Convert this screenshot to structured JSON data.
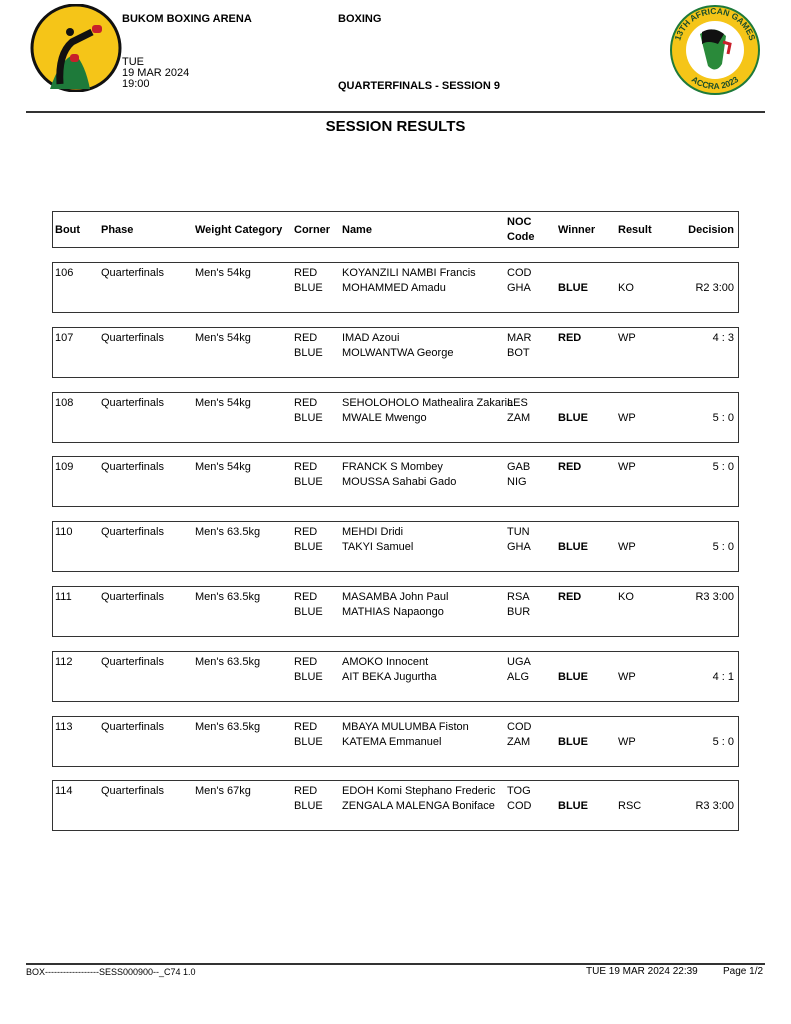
{
  "header": {
    "venue": "BUKOM BOXING ARENA",
    "sport": "BOXING",
    "day": "TUE",
    "date": "19 MAR 2024",
    "time": "19:00",
    "session": "QUARTERFINALS - SESSION 9",
    "games_logo_text": [
      "13TH AFRICAN GAMES",
      "ACCRA 2023"
    ]
  },
  "title": "SESSION RESULTS",
  "columns": {
    "bout": "Bout",
    "phase": "Phase",
    "weight": "Weight Category",
    "corner": "Corner",
    "name": "Name",
    "noc1": "NOC",
    "noc2": "Code",
    "winner": "Winner",
    "result": "Result",
    "decision": "Decision"
  },
  "bouts": [
    {
      "bout": "106",
      "phase": "Quarterfinals",
      "weight": "Men's 54kg",
      "red": "RED",
      "blue": "BLUE",
      "red_name": "KOYANZILI NAMBI Francis",
      "blue_name": "MOHAMMED Amadu",
      "red_noc": "COD",
      "blue_noc": "GHA",
      "winner": "BLUE",
      "result": "KO",
      "decision": "R2 3:00"
    },
    {
      "bout": "107",
      "phase": "Quarterfinals",
      "weight": "Men's 54kg",
      "red": "RED",
      "blue": "BLUE",
      "red_name": "IMAD Azoui",
      "blue_name": "MOLWANTWA George",
      "red_noc": "MAR",
      "blue_noc": "BOT",
      "winner": "RED",
      "result": "WP",
      "decision": "4 : 3"
    },
    {
      "bout": "108",
      "phase": "Quarterfinals",
      "weight": "Men's 54kg",
      "red": "RED",
      "blue": "BLUE",
      "red_name": "SEHOLOHOLO Mathealira Zakaria",
      "blue_name": "MWALE Mwengo",
      "red_noc": "LES",
      "blue_noc": "ZAM",
      "winner": "BLUE",
      "result": "WP",
      "decision": "5 : 0"
    },
    {
      "bout": "109",
      "phase": "Quarterfinals",
      "weight": "Men's 54kg",
      "red": "RED",
      "blue": "BLUE",
      "red_name": "FRANCK S Mombey",
      "blue_name": "MOUSSA Sahabi Gado",
      "red_noc": "GAB",
      "blue_noc": "NIG",
      "winner": "RED",
      "result": "WP",
      "decision": "5 : 0"
    },
    {
      "bout": "110",
      "phase": "Quarterfinals",
      "weight": "Men's 63.5kg",
      "red": "RED",
      "blue": "BLUE",
      "red_name": "MEHDI Dridi",
      "blue_name": "TAKYI Samuel",
      "red_noc": "TUN",
      "blue_noc": "GHA",
      "winner": "BLUE",
      "result": "WP",
      "decision": "5 : 0"
    },
    {
      "bout": "111",
      "phase": "Quarterfinals",
      "weight": "Men's 63.5kg",
      "red": "RED",
      "blue": "BLUE",
      "red_name": "MASAMBA John Paul",
      "blue_name": "MATHIAS Napaongo",
      "red_noc": "RSA",
      "blue_noc": "BUR",
      "winner": "RED",
      "result": "KO",
      "decision": "R3 3:00"
    },
    {
      "bout": "112",
      "phase": "Quarterfinals",
      "weight": "Men's 63.5kg",
      "red": "RED",
      "blue": "BLUE",
      "red_name": "AMOKO Innocent",
      "blue_name": "AIT BEKA Jugurtha",
      "red_noc": "UGA",
      "blue_noc": "ALG",
      "winner": "BLUE",
      "result": "WP",
      "decision": "4 : 1"
    },
    {
      "bout": "113",
      "phase": "Quarterfinals",
      "weight": "Men's 63.5kg",
      "red": "RED",
      "blue": "BLUE",
      "red_name": "MBAYA MULUMBA Fiston",
      "blue_name": "KATEMA Emmanuel",
      "red_noc": "COD",
      "blue_noc": "ZAM",
      "winner": "BLUE",
      "result": "WP",
      "decision": "5 : 0"
    },
    {
      "bout": "114",
      "phase": "Quarterfinals",
      "weight": "Men's 67kg",
      "red": "RED",
      "blue": "BLUE",
      "red_name": "EDOH Komi Stephano Frederic",
      "blue_name": "ZENGALA MALENGA Boniface",
      "red_noc": "TOG",
      "blue_noc": "COD",
      "winner": "BLUE",
      "result": "RSC",
      "decision": "R3 3:00"
    }
  ],
  "footer": {
    "code": "BOX------------------SESS000900--_C74 1.0",
    "printed": "TUE 19 MAR 2024 22:39",
    "page": "Page 1/2"
  }
}
